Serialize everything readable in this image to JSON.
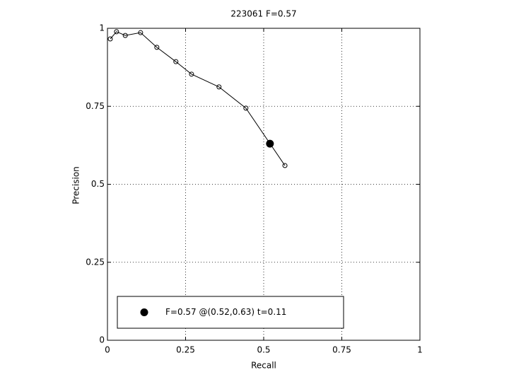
{
  "chart_data": {
    "type": "line",
    "title": "223061 F=0.57",
    "xlabel": "Recall",
    "ylabel": "Precision",
    "xlim": [
      0,
      1
    ],
    "ylim": [
      0,
      1
    ],
    "xticks": [
      0,
      0.25,
      0.5,
      0.75,
      1
    ],
    "yticks": [
      0,
      0.25,
      0.5,
      0.75,
      1
    ],
    "grid": true,
    "legend_location": "south",
    "series": [
      {
        "color": "#000000",
        "marker": "open-circle",
        "x": [
          0.009,
          0.029,
          0.057,
          0.106,
          0.158,
          0.219,
          0.269,
          0.357,
          0.443,
          0.568
        ],
        "values": [
          0.966,
          0.989,
          0.977,
          0.986,
          0.939,
          0.893,
          0.853,
          0.812,
          0.744,
          0.56
        ]
      },
      {
        "name": "F=0.57 @(0.52,0.63) t=0.11",
        "color": "#000000",
        "marker": "filled-circle",
        "x": [
          0.52
        ],
        "values": [
          0.63
        ]
      }
    ]
  }
}
